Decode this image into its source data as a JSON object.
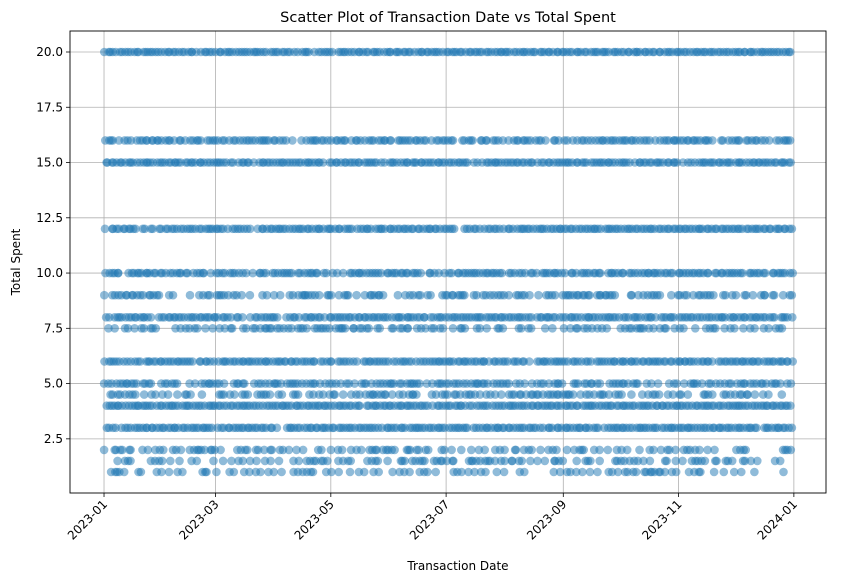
{
  "chart_data": {
    "type": "scatter",
    "title": "Scatter Plot of Transaction Date vs Total Spent",
    "xlabel": "Transaction Date",
    "ylabel": "Total Spent",
    "xlim": [
      "2022-12-14",
      "2024-01-18"
    ],
    "ylim": [
      0.05,
      20.95
    ],
    "x_ticks": [
      "2023-01",
      "2023-03",
      "2023-05",
      "2023-07",
      "2023-09",
      "2023-11",
      "2024-01"
    ],
    "y_ticks": [
      "2.5",
      "5.0",
      "7.5",
      "10.0",
      "12.5",
      "15.0",
      "17.5",
      "20.0"
    ],
    "grid": true,
    "marker_color": "#1f77b4",
    "marker_alpha": 0.5,
    "series": [
      {
        "x_range": [
          "2023-01-01",
          "2023-12-31"
        ],
        "y_levels": [
          1.0,
          1.5,
          2.0,
          3.0,
          4.0,
          4.5,
          5.0,
          6.0,
          7.5,
          8.0,
          9.0,
          10.0,
          12.0,
          15.0,
          16.0,
          20.0
        ],
        "density": [
          0.42,
          0.5,
          0.5,
          0.95,
          0.98,
          0.55,
          0.75,
          0.95,
          0.55,
          0.9,
          0.7,
          0.85,
          0.95,
          0.95,
          0.8,
          0.97
        ]
      }
    ]
  }
}
